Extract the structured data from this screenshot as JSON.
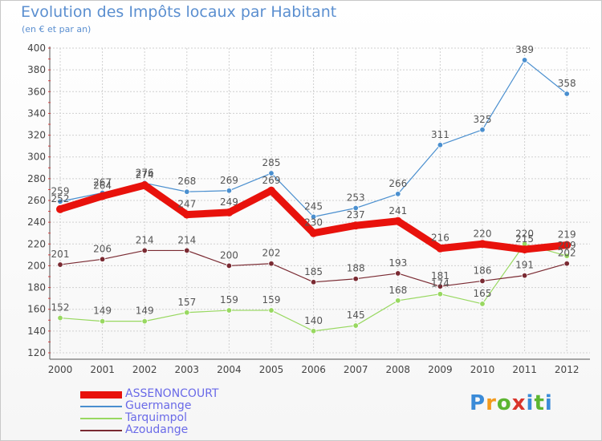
{
  "title": "Evolution des Impôts locaux par Habitant",
  "subtitle": "(en € et par an)",
  "logo_text": "Proxiti",
  "logo_colors": [
    "#3a8bd8",
    "#f39a1d",
    "#5cb531",
    "#d9342b",
    "#3a8bd8",
    "#5cb531",
    "#3a8bd8"
  ],
  "chart_data": {
    "type": "line",
    "title": "Evolution des Impôts locaux par Habitant",
    "subtitle": "(en € et par an)",
    "xlabel": "",
    "ylabel": "",
    "x": [
      "2000",
      "2001",
      "2002",
      "2003",
      "2004",
      "2005",
      "2006",
      "2007",
      "2008",
      "2009",
      "2010",
      "2011",
      "2012"
    ],
    "yticks": [
      "120",
      "140",
      "160",
      "180",
      "200",
      "220",
      "240",
      "260",
      "280",
      "300",
      "320",
      "340",
      "360",
      "380",
      "400"
    ],
    "ylim": [
      120,
      400
    ],
    "grid": true,
    "legend_position": "bottom-left",
    "series": [
      {
        "name": "ASSENONCOURT",
        "color": "#e8120c",
        "values": [
          252,
          264,
          274,
          247,
          249,
          269,
          230,
          237,
          241,
          216,
          220,
          215,
          219
        ],
        "labels": [
          "252",
          "264",
          "274",
          "247",
          "249",
          "269",
          "230",
          "237",
          "241",
          "216",
          "220",
          "215",
          "219"
        ]
      },
      {
        "name": "Guermange",
        "color": "#4a8fcf",
        "values": [
          259,
          267,
          276,
          268,
          269,
          285,
          245,
          253,
          266,
          311,
          325,
          389,
          358
        ],
        "labels": [
          "259",
          "267",
          "276",
          "268",
          "269",
          "285",
          "245",
          "253",
          "266",
          "311",
          "325",
          "389",
          "358"
        ]
      },
      {
        "name": "Tarquimpol",
        "color": "#98d860",
        "values": [
          152,
          149,
          149,
          157,
          159,
          159,
          140,
          145,
          168,
          174,
          165,
          220,
          209
        ],
        "labels": [
          "152",
          "149",
          "149",
          "157",
          "159",
          "159",
          "140",
          "145",
          "168",
          "174",
          "165",
          "220",
          "209"
        ]
      },
      {
        "name": "Azoudange",
        "color": "#7a2a32",
        "values": [
          201,
          206,
          214,
          214,
          200,
          202,
          185,
          188,
          193,
          181,
          186,
          191,
          202
        ],
        "labels": [
          "201",
          "206",
          "214",
          "214",
          "200",
          "202",
          "185",
          "188",
          "193",
          "181",
          "186",
          "191",
          "202"
        ]
      }
    ]
  }
}
